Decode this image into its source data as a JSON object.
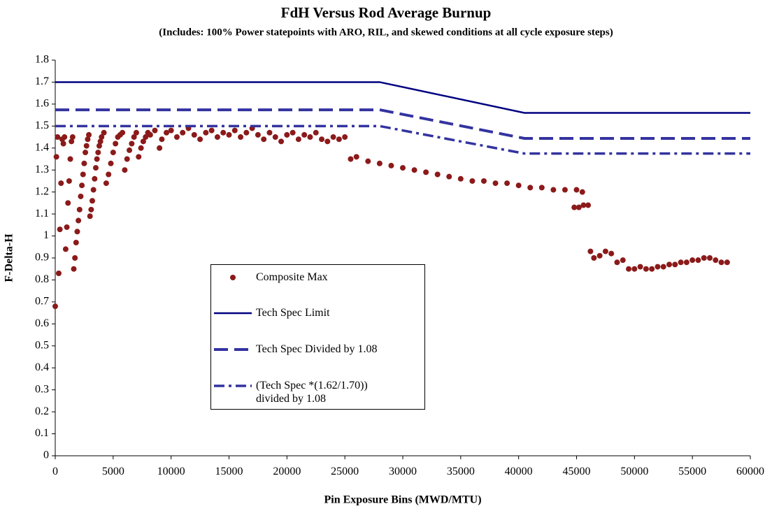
{
  "chart_data": {
    "type": "scatter",
    "title": "FdH Versus Rod Average Burnup",
    "subtitle": "(Includes: 100% Power statepoints with ARO, RIL, and skewed conditions at all cycle exposure steps)",
    "x_label": "Pin Exposure Bins (MWD/MTU)",
    "y_label": "F-Delta-H",
    "xlim": [
      0,
      60000
    ],
    "ylim": [
      0,
      1.8
    ],
    "xticks": [
      0,
      5000,
      10000,
      15000,
      20000,
      25000,
      30000,
      35000,
      40000,
      45000,
      50000,
      55000,
      60000
    ],
    "yticks": [
      0,
      0.1,
      0.2,
      0.3,
      0.4,
      0.5,
      0.6,
      0.7,
      0.8,
      0.9,
      1,
      1.1,
      1.2,
      1.3,
      1.4,
      1.5,
      1.6,
      1.7,
      1.8
    ],
    "series": [
      {
        "name": "Composite Max",
        "type": "scatter",
        "color": "#8b1a1a",
        "x": [
          0,
          100,
          200,
          300,
          400,
          500,
          600,
          700,
          800,
          900,
          1000,
          1100,
          1200,
          1300,
          1400,
          1500,
          1600,
          1700,
          1800,
          1900,
          2000,
          2100,
          2200,
          2300,
          2400,
          2500,
          2600,
          2700,
          2800,
          2900,
          3000,
          3100,
          3200,
          3300,
          3400,
          3500,
          3600,
          3700,
          3800,
          3900,
          4000,
          4200,
          4400,
          4600,
          4800,
          5000,
          5200,
          5400,
          5600,
          5800,
          6000,
          6200,
          6400,
          6600,
          6800,
          7000,
          7200,
          7400,
          7600,
          7800,
          8000,
          8200,
          8600,
          9000,
          9200,
          9600,
          10000,
          10500,
          11000,
          11500,
          12000,
          12500,
          13000,
          13500,
          14000,
          14500,
          15000,
          15500,
          16000,
          16500,
          17000,
          17500,
          18000,
          18500,
          19000,
          19500,
          20000,
          20500,
          21000,
          21500,
          22000,
          22500,
          23000,
          23500,
          24000,
          24500,
          25000,
          25500,
          26000,
          27000,
          28000,
          29000,
          30000,
          31000,
          32000,
          33000,
          34000,
          35000,
          36000,
          37000,
          38000,
          39000,
          40000,
          41000,
          42000,
          43000,
          44000,
          45000,
          45500,
          44800,
          45200,
          45600,
          46000,
          46200,
          46500,
          47000,
          47500,
          48000,
          48500,
          49000,
          49500,
          50000,
          50500,
          51000,
          51500,
          52000,
          52500,
          53000,
          53500,
          54000,
          54500,
          55000,
          55500,
          56000,
          56500,
          57000,
          57500,
          58000
        ],
        "values": [
          0.68,
          1.36,
          1.45,
          0.83,
          1.03,
          1.24,
          1.44,
          1.42,
          1.45,
          0.94,
          1.04,
          1.15,
          1.25,
          1.35,
          1.43,
          1.45,
          0.85,
          0.9,
          0.97,
          1.02,
          1.07,
          1.12,
          1.18,
          1.23,
          1.28,
          1.33,
          1.38,
          1.41,
          1.44,
          1.46,
          1.09,
          1.12,
          1.16,
          1.21,
          1.26,
          1.31,
          1.35,
          1.38,
          1.41,
          1.43,
          1.45,
          1.47,
          1.24,
          1.28,
          1.33,
          1.38,
          1.42,
          1.45,
          1.46,
          1.47,
          1.3,
          1.35,
          1.39,
          1.42,
          1.45,
          1.47,
          1.36,
          1.4,
          1.43,
          1.45,
          1.47,
          1.46,
          1.48,
          1.4,
          1.44,
          1.47,
          1.48,
          1.45,
          1.47,
          1.49,
          1.46,
          1.44,
          1.47,
          1.48,
          1.45,
          1.47,
          1.46,
          1.48,
          1.45,
          1.47,
          1.49,
          1.46,
          1.44,
          1.47,
          1.45,
          1.43,
          1.46,
          1.47,
          1.44,
          1.46,
          1.45,
          1.47,
          1.44,
          1.43,
          1.45,
          1.44,
          1.45,
          1.35,
          1.36,
          1.34,
          1.33,
          1.32,
          1.31,
          1.3,
          1.29,
          1.28,
          1.27,
          1.26,
          1.25,
          1.25,
          1.24,
          1.24,
          1.23,
          1.22,
          1.22,
          1.21,
          1.21,
          1.21,
          1.2,
          1.13,
          1.13,
          1.14,
          1.14,
          0.93,
          0.9,
          0.91,
          0.93,
          0.92,
          0.88,
          0.89,
          0.85,
          0.85,
          0.86,
          0.85,
          0.85,
          0.86,
          0.86,
          0.87,
          0.87,
          0.88,
          0.88,
          0.89,
          0.89,
          0.9,
          0.9,
          0.89,
          0.88,
          0.88
        ]
      },
      {
        "name": "Tech Spec Limit",
        "type": "line",
        "line_style": "solid",
        "color": "#000080",
        "x": [
          0,
          28000,
          40500,
          60000
        ],
        "values": [
          1.7,
          1.7,
          1.56,
          1.56
        ]
      },
      {
        "name": "Tech Spec Divided by 1.08",
        "type": "line",
        "line_style": "dashed",
        "color": "#3333a0",
        "x": [
          0,
          28000,
          40500,
          60000
        ],
        "values": [
          1.574,
          1.574,
          1.444,
          1.444
        ]
      },
      {
        "name": "(Tech Spec *(1.62/1.70)) divided by 1.08",
        "type": "line",
        "line_style": "dashdot",
        "color": "#3333a0",
        "x": [
          0,
          28000,
          40500,
          60000
        ],
        "values": [
          1.5,
          1.5,
          1.375,
          1.375
        ]
      }
    ]
  }
}
